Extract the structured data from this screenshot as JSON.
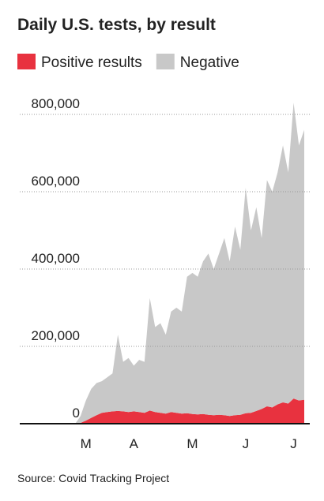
{
  "chart_data": {
    "type": "stacked-area",
    "title": "Daily U.S. tests, by result",
    "source": "Source: Covid Tracking Project",
    "categories": [
      null,
      null,
      null,
      null,
      null,
      "M",
      null,
      null,
      null,
      null,
      null,
      null,
      null,
      null,
      "A",
      null,
      null,
      null,
      null,
      null,
      null,
      null,
      null,
      null,
      null,
      "M",
      null,
      null,
      null,
      null,
      null,
      null,
      null,
      null,
      null,
      "J",
      null,
      null,
      null,
      null,
      null,
      null,
      null,
      null,
      "J",
      null,
      null
    ],
    "series": [
      {
        "name": "Positive results",
        "color": "#e8323f",
        "values": [
          0,
          0,
          0,
          0,
          2000,
          8000,
          15000,
          22000,
          28000,
          30000,
          32000,
          33000,
          32000,
          30000,
          32000,
          30000,
          28000,
          34000,
          30000,
          28000,
          26000,
          30000,
          28000,
          26000,
          27000,
          25000,
          24000,
          25000,
          23000,
          22000,
          23000,
          22000,
          20000,
          22000,
          23000,
          27000,
          28000,
          33000,
          38000,
          45000,
          42000,
          50000,
          55000,
          52000,
          65000,
          60000,
          62000
        ]
      },
      {
        "name": "Negative",
        "color": "#c8c8c8",
        "values": [
          0,
          0,
          0,
          0,
          18000,
          52000,
          75000,
          83000,
          82000,
          90000,
          98000,
          197000,
          128000,
          140000,
          118000,
          135000,
          132000,
          291000,
          220000,
          232000,
          204000,
          260000,
          272000,
          264000,
          353000,
          365000,
          356000,
          395000,
          417000,
          378000,
          417000,
          458000,
          400000,
          488000,
          427000,
          583000,
          472000,
          527000,
          442000,
          585000,
          558000,
          600000,
          665000,
          598000,
          765000,
          660000,
          698000
        ]
      }
    ],
    "ylim": [
      0,
      850000
    ],
    "yticks": [
      0,
      {
        "value": 200000,
        "label": "200,000"
      },
      {
        "value": 400000,
        "label": "400,000"
      },
      {
        "value": 600000,
        "label": "600,000"
      },
      {
        "value": 800000,
        "label": "800,000"
      }
    ],
    "grid": true
  }
}
